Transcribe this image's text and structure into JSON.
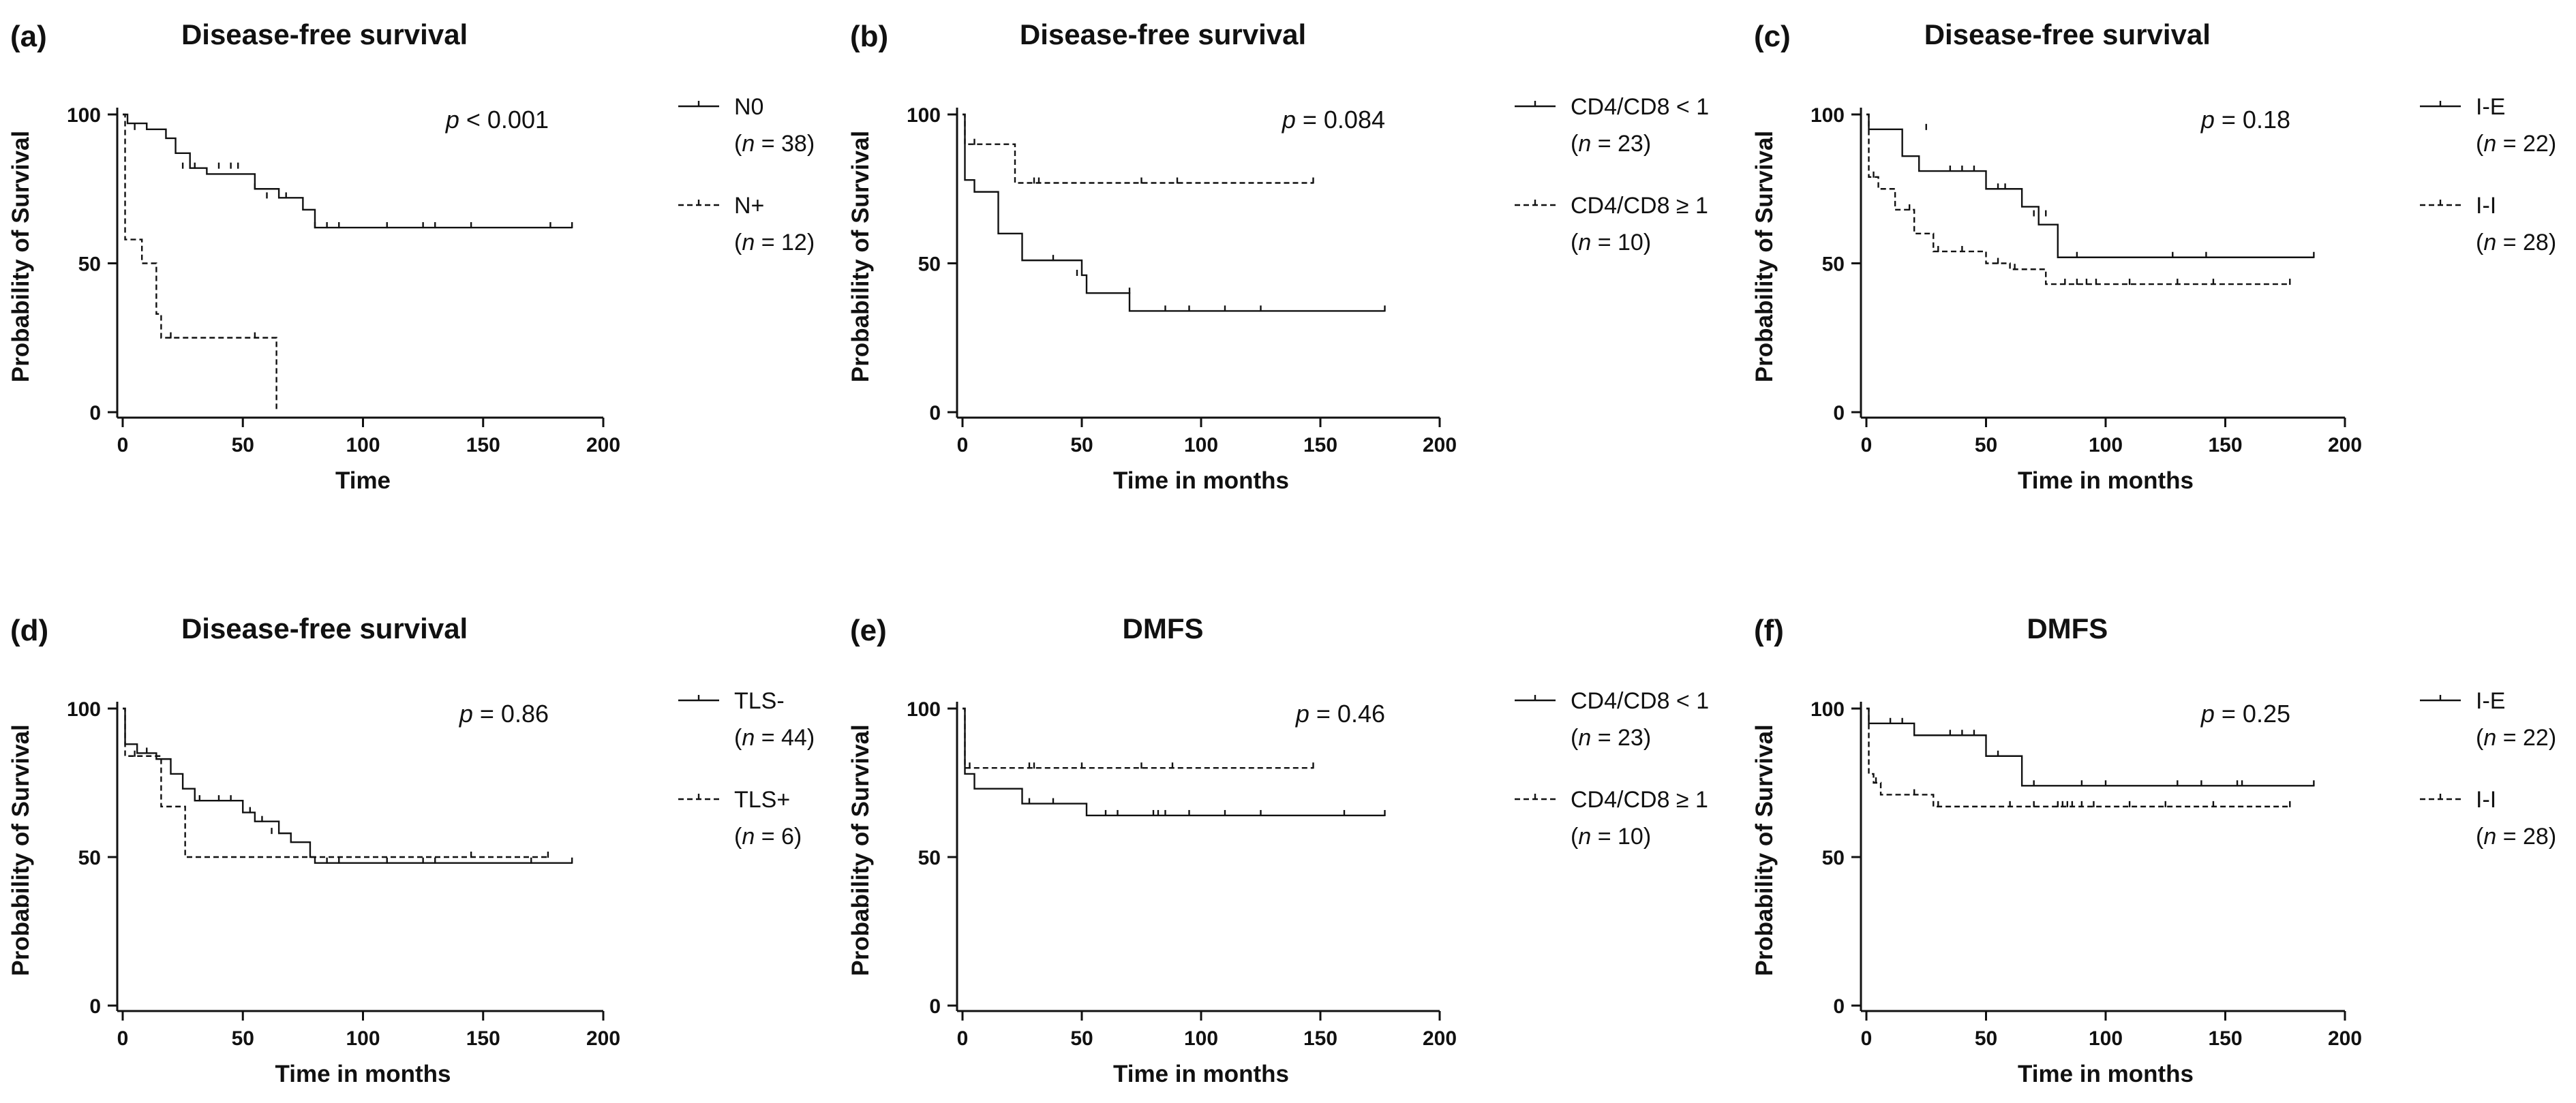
{
  "chart_data": [
    {
      "panel": "(a)",
      "type": "line",
      "subtype": "kaplan-meier",
      "title": "Disease-free survival",
      "xlabel": "Time",
      "ylabel": "Probability of Survival",
      "xlim": [
        0,
        200
      ],
      "ylim": [
        0,
        100
      ],
      "xticks": [
        0,
        50,
        100,
        150,
        200
      ],
      "yticks": [
        0,
        50,
        100
      ],
      "p_prefix": "p",
      "p_text": " < 0.001",
      "series": [
        {
          "name": "N0",
          "n_label": " = 38)",
          "style": "solid",
          "steps": [
            [
              0,
              100
            ],
            [
              2,
              97
            ],
            [
              10,
              95
            ],
            [
              18,
              92
            ],
            [
              22,
              87
            ],
            [
              28,
              82
            ],
            [
              35,
              80
            ],
            [
              55,
              75
            ],
            [
              65,
              72
            ],
            [
              75,
              68
            ],
            [
              80,
              62
            ],
            [
              187,
              62
            ]
          ],
          "censored": [
            [
              5,
              95
            ],
            [
              25,
              82
            ],
            [
              30,
              82
            ],
            [
              40,
              82
            ],
            [
              45,
              82
            ],
            [
              48,
              82
            ],
            [
              55,
              75
            ],
            [
              60,
              72
            ],
            [
              68,
              72
            ],
            [
              80,
              62
            ],
            [
              85,
              62
            ],
            [
              90,
              62
            ],
            [
              110,
              62
            ],
            [
              125,
              62
            ],
            [
              130,
              62
            ],
            [
              145,
              62
            ],
            [
              178,
              62
            ],
            [
              187,
              62
            ]
          ]
        },
        {
          "name": "N+",
          "n_label": " = 12)",
          "style": "dashed",
          "steps": [
            [
              0,
              100
            ],
            [
              1,
              58
            ],
            [
              8,
              50
            ],
            [
              14,
              33
            ],
            [
              16,
              25
            ],
            [
              63,
              25
            ],
            [
              64,
              0
            ]
          ],
          "censored": [
            [
              20,
              25
            ],
            [
              55,
              25
            ]
          ]
        }
      ]
    },
    {
      "panel": "(b)",
      "type": "line",
      "subtype": "kaplan-meier",
      "title": "Disease-free survival",
      "xlabel": "Time in months",
      "ylabel": "Probability of Survival",
      "xlim": [
        0,
        200
      ],
      "ylim": [
        0,
        100
      ],
      "xticks": [
        0,
        50,
        100,
        150,
        200
      ],
      "yticks": [
        0,
        50,
        100
      ],
      "p_prefix": "p",
      "p_text": " = 0.084",
      "series": [
        {
          "name": "CD4/CD8 < 1",
          "n_label": " = 23)",
          "style": "solid",
          "steps": [
            [
              0,
              100
            ],
            [
              1,
              78
            ],
            [
              5,
              74
            ],
            [
              15,
              60
            ],
            [
              25,
              51
            ],
            [
              50,
              46
            ],
            [
              52,
              40
            ],
            [
              70,
              34
            ],
            [
              177,
              34
            ]
          ],
          "censored": [
            [
              38,
              51
            ],
            [
              48,
              46
            ],
            [
              70,
              40
            ],
            [
              85,
              34
            ],
            [
              95,
              34
            ],
            [
              110,
              34
            ],
            [
              125,
              34
            ],
            [
              177,
              34
            ]
          ]
        },
        {
          "name": "CD4/CD8 ≥ 1",
          "n_label": " = 10)",
          "style": "dashed",
          "steps": [
            [
              0,
              100
            ],
            [
              1,
              90
            ],
            [
              22,
              77
            ],
            [
              147,
              77
            ]
          ],
          "censored": [
            [
              5,
              90
            ],
            [
              30,
              77
            ],
            [
              32,
              77
            ],
            [
              75,
              77
            ],
            [
              90,
              77
            ],
            [
              147,
              77
            ]
          ]
        }
      ]
    },
    {
      "panel": "(c)",
      "type": "line",
      "subtype": "kaplan-meier",
      "title": "Disease-free survival",
      "xlabel": "Time in months",
      "ylabel": "Probability of Survival",
      "xlim": [
        0,
        200
      ],
      "ylim": [
        0,
        100
      ],
      "xticks": [
        0,
        50,
        100,
        150,
        200
      ],
      "yticks": [
        0,
        50,
        100
      ],
      "p_prefix": "p",
      "p_text": " = 0.18",
      "series": [
        {
          "name": "I-E",
          "n_label": " = 22)",
          "style": "solid",
          "steps": [
            [
              0,
              100
            ],
            [
              1,
              95
            ],
            [
              15,
              86
            ],
            [
              22,
              81
            ],
            [
              50,
              75
            ],
            [
              65,
              69
            ],
            [
              72,
              63
            ],
            [
              80,
              52
            ],
            [
              187,
              52
            ]
          ],
          "censored": [
            [
              25,
              95
            ],
            [
              35,
              81
            ],
            [
              40,
              81
            ],
            [
              45,
              81
            ],
            [
              55,
              75
            ],
            [
              58,
              75
            ],
            [
              70,
              66
            ],
            [
              75,
              66
            ],
            [
              88,
              52
            ],
            [
              128,
              52
            ],
            [
              142,
              52
            ],
            [
              187,
              52
            ]
          ]
        },
        {
          "name": "I-I",
          "n_label": " = 28)",
          "style": "dashed",
          "steps": [
            [
              0,
              100
            ],
            [
              1,
              79
            ],
            [
              5,
              75
            ],
            [
              12,
              68
            ],
            [
              20,
              60
            ],
            [
              28,
              54
            ],
            [
              50,
              50
            ],
            [
              60,
              48
            ],
            [
              75,
              43
            ],
            [
              177,
              43
            ]
          ],
          "censored": [
            [
              3,
              79
            ],
            [
              18,
              68
            ],
            [
              30,
              54
            ],
            [
              40,
              54
            ],
            [
              55,
              50
            ],
            [
              62,
              48
            ],
            [
              83,
              43
            ],
            [
              88,
              43
            ],
            [
              92,
              43
            ],
            [
              96,
              43
            ],
            [
              110,
              43
            ],
            [
              130,
              43
            ],
            [
              145,
              43
            ],
            [
              177,
              43
            ]
          ]
        }
      ]
    },
    {
      "panel": "(d)",
      "type": "line",
      "subtype": "kaplan-meier",
      "title": "Disease-free survival",
      "xlabel": "Time in months",
      "ylabel": "Probability of Survival",
      "xlim": [
        0,
        200
      ],
      "ylim": [
        0,
        100
      ],
      "xticks": [
        0,
        50,
        100,
        150,
        200
      ],
      "yticks": [
        0,
        50,
        100
      ],
      "p_prefix": "p",
      "p_text": " = 0.86",
      "series": [
        {
          "name": "TLS-",
          "n_label": " = 44)",
          "style": "solid",
          "steps": [
            [
              0,
              100
            ],
            [
              1,
              88
            ],
            [
              6,
              85
            ],
            [
              14,
              83
            ],
            [
              20,
              78
            ],
            [
              25,
              73
            ],
            [
              30,
              69
            ],
            [
              50,
              65
            ],
            [
              55,
              62
            ],
            [
              65,
              58
            ],
            [
              70,
              55
            ],
            [
              78,
              50
            ],
            [
              80,
              48
            ],
            [
              187,
              48
            ]
          ],
          "censored": [
            [
              10,
              85
            ],
            [
              32,
              69
            ],
            [
              40,
              69
            ],
            [
              45,
              69
            ],
            [
              53,
              65
            ],
            [
              58,
              62
            ],
            [
              62,
              58
            ],
            [
              85,
              48
            ],
            [
              90,
              48
            ],
            [
              110,
              48
            ],
            [
              125,
              48
            ],
            [
              130,
              48
            ],
            [
              170,
              48
            ],
            [
              187,
              48
            ]
          ]
        },
        {
          "name": "TLS+",
          "n_label": " = 6)",
          "style": "dashed",
          "steps": [
            [
              0,
              100
            ],
            [
              1,
              84
            ],
            [
              16,
              67
            ],
            [
              26,
              50
            ],
            [
              177,
              50
            ]
          ],
          "censored": [
            [
              5,
              84
            ],
            [
              145,
              50
            ],
            [
              177,
              50
            ]
          ]
        }
      ]
    },
    {
      "panel": "(e)",
      "type": "line",
      "subtype": "kaplan-meier",
      "title": "DMFS",
      "xlabel": "Time in months",
      "ylabel": "Probability of Survival",
      "xlim": [
        0,
        200
      ],
      "ylim": [
        0,
        100
      ],
      "xticks": [
        0,
        50,
        100,
        150,
        200
      ],
      "yticks": [
        0,
        50,
        100
      ],
      "p_prefix": "p",
      "p_text": " = 0.46",
      "series": [
        {
          "name": "CD4/CD8 < 1",
          "n_label": " = 23)",
          "style": "solid",
          "steps": [
            [
              0,
              100
            ],
            [
              1,
              78
            ],
            [
              5,
              73
            ],
            [
              25,
              68
            ],
            [
              52,
              64
            ],
            [
              177,
              64
            ]
          ],
          "censored": [
            [
              28,
              68
            ],
            [
              38,
              68
            ],
            [
              60,
              64
            ],
            [
              65,
              64
            ],
            [
              80,
              64
            ],
            [
              82,
              64
            ],
            [
              85,
              64
            ],
            [
              95,
              64
            ],
            [
              110,
              64
            ],
            [
              125,
              64
            ],
            [
              160,
              64
            ],
            [
              177,
              64
            ]
          ]
        },
        {
          "name": "CD4/CD8 ≥ 1",
          "n_label": " = 10)",
          "style": "dashed",
          "steps": [
            [
              0,
              100
            ],
            [
              1,
              80
            ],
            [
              147,
              80
            ]
          ],
          "censored": [
            [
              3,
              80
            ],
            [
              28,
              80
            ],
            [
              30,
              80
            ],
            [
              50,
              80
            ],
            [
              75,
              80
            ],
            [
              88,
              80
            ],
            [
              147,
              80
            ]
          ]
        }
      ]
    },
    {
      "panel": "(f)",
      "type": "line",
      "subtype": "kaplan-meier",
      "title": "DMFS",
      "xlabel": "Time in months",
      "ylabel": "Probability of Survival",
      "xlim": [
        0,
        200
      ],
      "ylim": [
        0,
        100
      ],
      "xticks": [
        0,
        50,
        100,
        150,
        200
      ],
      "yticks": [
        0,
        50,
        100
      ],
      "p_prefix": "p",
      "p_text": " = 0.25",
      "series": [
        {
          "name": "I-E",
          "n_label": " = 22)",
          "style": "solid",
          "steps": [
            [
              0,
              100
            ],
            [
              1,
              95
            ],
            [
              20,
              91
            ],
            [
              50,
              84
            ],
            [
              65,
              74
            ],
            [
              187,
              74
            ]
          ],
          "censored": [
            [
              10,
              95
            ],
            [
              15,
              95
            ],
            [
              35,
              91
            ],
            [
              40,
              91
            ],
            [
              45,
              91
            ],
            [
              55,
              84
            ],
            [
              70,
              74
            ],
            [
              90,
              74
            ],
            [
              100,
              74
            ],
            [
              130,
              74
            ],
            [
              140,
              74
            ],
            [
              155,
              74
            ],
            [
              157,
              74
            ],
            [
              187,
              74
            ]
          ]
        },
        {
          "name": "I-I",
          "n_label": " = 28)",
          "style": "dashed",
          "steps": [
            [
              0,
              100
            ],
            [
              1,
              78
            ],
            [
              3,
              75
            ],
            [
              6,
              71
            ],
            [
              28,
              67
            ],
            [
              177,
              67
            ]
          ],
          "censored": [
            [
              4,
              75
            ],
            [
              20,
              71
            ],
            [
              30,
              67
            ],
            [
              60,
              67
            ],
            [
              70,
              67
            ],
            [
              80,
              67
            ],
            [
              82,
              67
            ],
            [
              84,
              67
            ],
            [
              86,
              67
            ],
            [
              90,
              67
            ],
            [
              95,
              67
            ],
            [
              110,
              67
            ],
            [
              125,
              67
            ],
            [
              145,
              67
            ],
            [
              177,
              67
            ]
          ]
        }
      ]
    }
  ]
}
